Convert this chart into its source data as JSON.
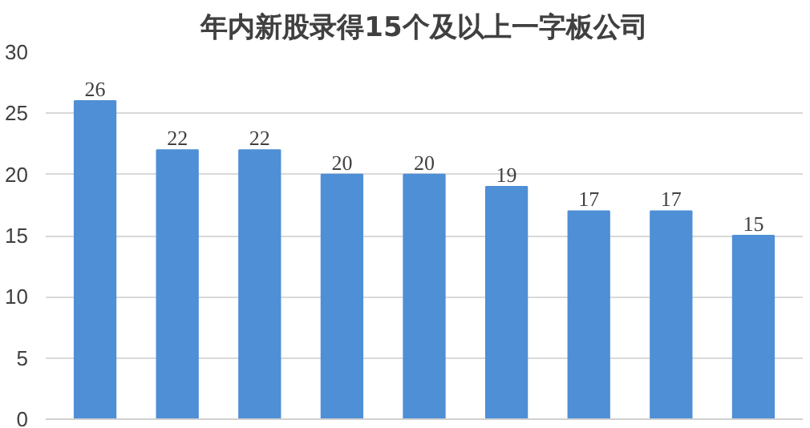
{
  "chart_data": {
    "type": "bar",
    "title": "年内新股录得15个及以上一字板公司",
    "categories": [
      null,
      null,
      null,
      null,
      null,
      null,
      null,
      null,
      null
    ],
    "values": [
      26,
      22,
      22,
      20,
      20,
      19,
      17,
      17,
      15
    ],
    "color": "#4f8fd6",
    "ylim": [
      0,
      30
    ],
    "yticks": [
      0,
      5,
      10,
      15,
      20,
      25,
      30
    ],
    "grid": "y",
    "data_labels": true
  }
}
